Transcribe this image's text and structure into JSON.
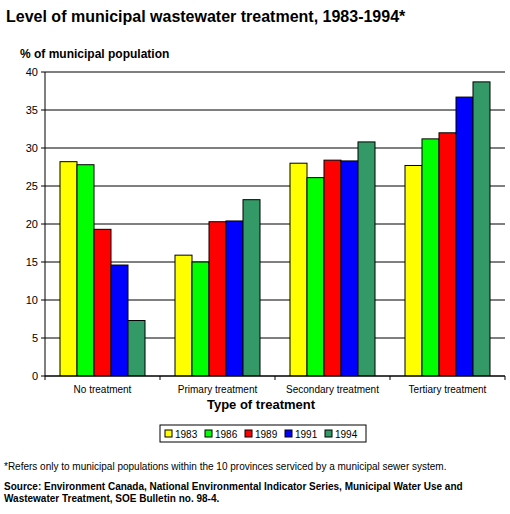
{
  "chart_data": {
    "type": "bar",
    "title": "Level of municipal wastewater treatment, 1983-1994*",
    "y_label": "% of municipal population",
    "x_label": "Type of treatment",
    "categories": [
      "No treatment",
      "Primary treatment",
      "Secondary treatment",
      "Tertiary treatment"
    ],
    "series": [
      {
        "name": "1983",
        "color": "#ffff00",
        "values": [
          28.2,
          15.9,
          28.0,
          27.7
        ]
      },
      {
        "name": "1986",
        "color": "#00ff00",
        "values": [
          27.8,
          15.0,
          26.1,
          31.2
        ]
      },
      {
        "name": "1989",
        "color": "#ff0000",
        "values": [
          19.3,
          20.3,
          28.4,
          32.0
        ]
      },
      {
        "name": "1991",
        "color": "#0000ff",
        "values": [
          14.6,
          20.4,
          28.3,
          36.7
        ]
      },
      {
        "name": "1994",
        "color": "#339966",
        "values": [
          7.3,
          23.2,
          30.8,
          38.7
        ]
      }
    ],
    "ylim": [
      0,
      40
    ],
    "yticks": [
      0,
      5,
      10,
      15,
      20,
      25,
      30,
      35,
      40
    ],
    "grid": true,
    "legend": "bottom",
    "annotations": [
      "*Refers only to municipal populations within the 10 provinces serviced by a municipal sewer system.",
      "Source: Environment Canada, National Environmental Indicator Series, Municipal Water Use and Wastewater Treatment, SOE Bulletin no. 98-4."
    ]
  }
}
